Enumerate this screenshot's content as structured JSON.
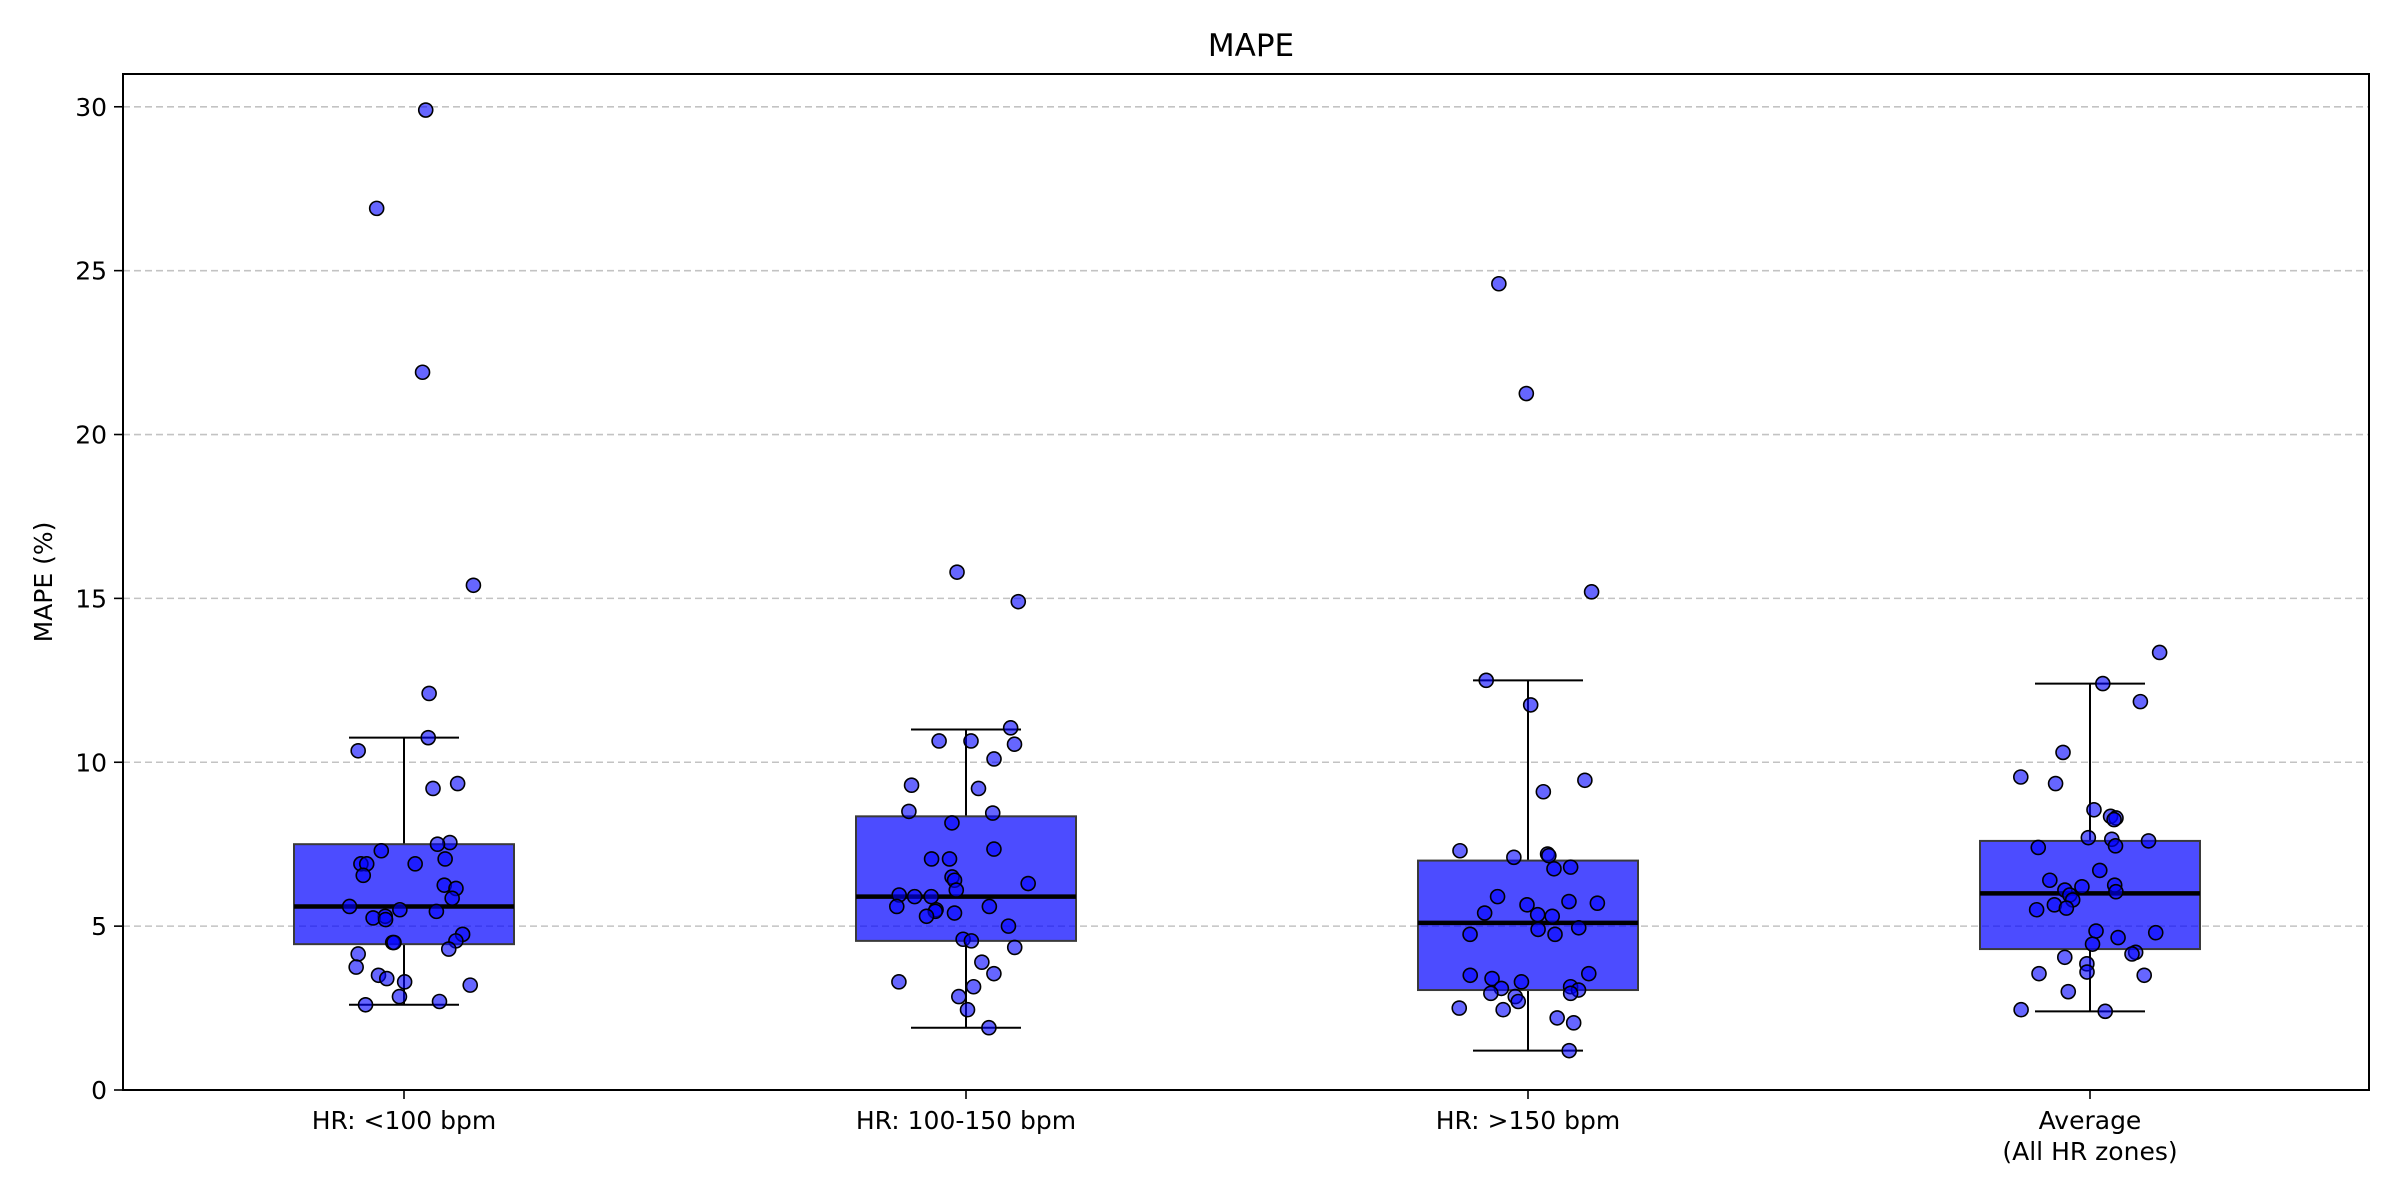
{
  "chart_data": {
    "type": "box",
    "title": "MAPE",
    "xlabel": "",
    "ylabel": "MAPE (%)",
    "ylim": [
      0,
      31
    ],
    "yticks": [
      0,
      5,
      10,
      15,
      20,
      25,
      30
    ],
    "grid": "y-dashed",
    "categories": [
      {
        "label": "HR: <100 bpm",
        "lines": [
          "HR: <100 bpm"
        ]
      },
      {
        "label": "HR: 100-150 bpm",
        "lines": [
          "HR: 100-150 bpm"
        ]
      },
      {
        "label": "HR: >150 bpm",
        "lines": [
          "HR: >150 bpm"
        ]
      },
      {
        "label": "Average (All HR zones)",
        "lines": [
          "Average",
          "(All HR zones)"
        ]
      }
    ],
    "boxes": [
      {
        "whisker_low": 2.6,
        "q1": 4.45,
        "median": 5.6,
        "q3": 7.5,
        "whisker_high": 10.75
      },
      {
        "whisker_low": 1.9,
        "q1": 4.55,
        "median": 5.9,
        "q3": 8.35,
        "whisker_high": 11.0
      },
      {
        "whisker_low": 1.2,
        "q1": 3.05,
        "median": 5.1,
        "q3": 7.0,
        "whisker_high": 12.5
      },
      {
        "whisker_low": 2.4,
        "q1": 4.3,
        "median": 6.0,
        "q3": 7.6,
        "whisker_high": 12.4
      }
    ],
    "points": [
      [
        29.9,
        26.9,
        21.9,
        15.4,
        12.1,
        10.75,
        10.35,
        9.35,
        9.2,
        7.55,
        7.5,
        7.3,
        7.05,
        6.9,
        6.9,
        6.9,
        6.55,
        6.25,
        6.15,
        5.85,
        5.6,
        5.5,
        5.45,
        5.3,
        5.25,
        5.2,
        4.75,
        4.55,
        4.5,
        4.5,
        4.3,
        4.15,
        3.75,
        3.5,
        3.4,
        3.3,
        3.2,
        2.85,
        2.7,
        2.6
      ],
      [
        15.8,
        14.9,
        11.05,
        10.65,
        10.65,
        10.55,
        10.1,
        9.3,
        9.2,
        8.5,
        8.45,
        8.15,
        7.35,
        7.05,
        7.05,
        6.5,
        6.4,
        6.3,
        6.1,
        5.95,
        5.9,
        5.9,
        5.6,
        5.6,
        5.5,
        5.45,
        5.4,
        5.3,
        5.0,
        4.6,
        4.55,
        4.35,
        3.9,
        3.55,
        3.3,
        3.15,
        2.85,
        2.45,
        1.9
      ],
      [
        24.6,
        21.25,
        15.2,
        12.5,
        11.75,
        9.45,
        9.1,
        7.3,
        7.2,
        7.15,
        7.1,
        6.8,
        6.75,
        5.9,
        5.75,
        5.7,
        5.65,
        5.4,
        5.35,
        5.3,
        4.95,
        4.9,
        4.75,
        4.75,
        3.55,
        3.5,
        3.4,
        3.3,
        3.15,
        3.1,
        3.05,
        2.95,
        2.95,
        2.85,
        2.7,
        2.5,
        2.45,
        2.2,
        2.05,
        1.2
      ],
      [
        13.35,
        12.4,
        11.85,
        10.3,
        9.55,
        9.35,
        8.55,
        8.35,
        8.3,
        8.25,
        7.7,
        7.65,
        7.6,
        7.45,
        7.4,
        6.7,
        6.4,
        6.25,
        6.2,
        6.1,
        6.05,
        5.95,
        5.8,
        5.65,
        5.55,
        5.5,
        4.85,
        4.8,
        4.65,
        4.45,
        4.2,
        4.15,
        4.05,
        3.85,
        3.6,
        3.55,
        3.5,
        3.0,
        2.45,
        2.4
      ]
    ],
    "colors": {
      "box_fill": "#0000ff",
      "box_edge": "#3a3a3a",
      "median": "#000000",
      "whisker": "#000000",
      "point_fill": "#0000ff",
      "point_edge": "#000000",
      "grid": "#b0b0b0"
    }
  }
}
